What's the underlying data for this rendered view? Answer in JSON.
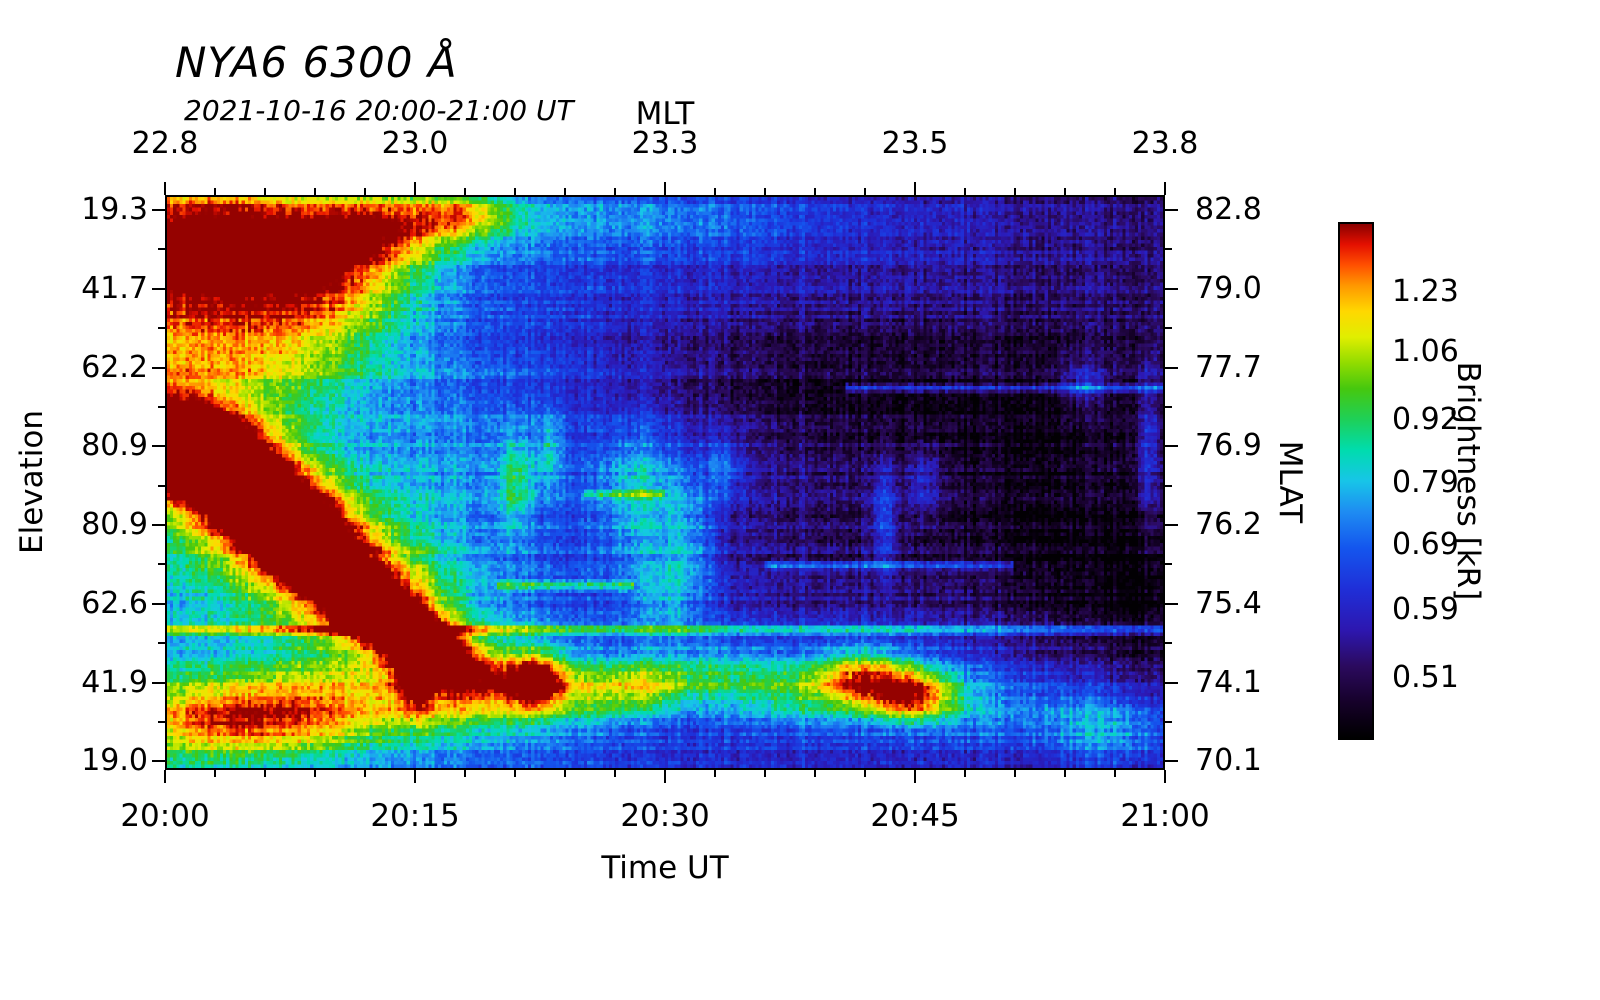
{
  "title": "NYA6 6300 Å",
  "subtitle": "2021-10-16 20:00-21:00 UT",
  "axes": {
    "top": {
      "label": "MLT",
      "ticks": [
        "22.8",
        "23.0",
        "23.3",
        "23.5",
        "23.8"
      ],
      "fracs": [
        0,
        0.25,
        0.5,
        0.75,
        1
      ]
    },
    "bottom": {
      "label": "Time UT",
      "ticks": [
        "20:00",
        "20:15",
        "20:30",
        "20:45",
        "21:00"
      ],
      "fracs": [
        0,
        0.25,
        0.5,
        0.75,
        1
      ]
    },
    "left": {
      "label": "Elevation",
      "ticks": [
        "19.3",
        "41.7",
        "62.2",
        "80.9",
        "80.9",
        "62.6",
        "41.9",
        "19.0"
      ],
      "fracs": [
        0.026,
        0.163,
        0.3,
        0.437,
        0.574,
        0.711,
        0.848,
        0.985
      ]
    },
    "right": {
      "label": "MLAT",
      "ticks": [
        "82.8",
        "79.0",
        "77.7",
        "76.9",
        "76.2",
        "75.4",
        "74.1",
        "70.1"
      ],
      "fracs": [
        0.026,
        0.163,
        0.3,
        0.437,
        0.574,
        0.711,
        0.848,
        0.985
      ]
    }
  },
  "colorbar": {
    "label": "Brightness [kR]",
    "ticks": [
      "1.23",
      "1.06",
      "0.92",
      "0.79",
      "0.69",
      "0.59",
      "0.51"
    ],
    "fracs": [
      0.135,
      0.251,
      0.382,
      0.504,
      0.623,
      0.749,
      0.88
    ]
  },
  "chart_data": {
    "type": "heatmap",
    "title": "NYA6 6300 Å",
    "subtitle": "2021-10-16 20:00-21:00 UT",
    "x_axis_bottom": {
      "label": "Time UT",
      "ticks": [
        "20:00",
        "20:15",
        "20:30",
        "20:45",
        "21:00"
      ]
    },
    "x_axis_top": {
      "label": "MLT",
      "ticks": [
        22.8,
        23.0,
        23.3,
        23.5,
        23.8
      ]
    },
    "y_axis_left": {
      "label": "Elevation",
      "ticks": [
        19.3,
        41.7,
        62.2,
        80.9,
        80.9,
        62.6,
        41.9,
        19.0
      ]
    },
    "y_axis_right": {
      "label": "MLAT",
      "ticks": [
        82.8,
        79.0,
        77.7,
        76.9,
        76.2,
        75.4,
        74.1,
        70.1
      ]
    },
    "value_axis": {
      "label": "Brightness [kR]",
      "ticks": [
        1.23,
        1.06,
        0.92,
        0.79,
        0.69,
        0.59,
        0.51
      ]
    },
    "colormap": [
      [
        0.0,
        "#000000"
      ],
      [
        0.07,
        "#16012a"
      ],
      [
        0.14,
        "#2b0a5e"
      ],
      [
        0.21,
        "#2d17b0"
      ],
      [
        0.29,
        "#1f2fd8"
      ],
      [
        0.37,
        "#1456ee"
      ],
      [
        0.44,
        "#1e8cf2"
      ],
      [
        0.5,
        "#17c5e8"
      ],
      [
        0.56,
        "#00dcae"
      ],
      [
        0.62,
        "#1ed058"
      ],
      [
        0.68,
        "#46c80e"
      ],
      [
        0.73,
        "#92dc00"
      ],
      [
        0.78,
        "#e0ee00"
      ],
      [
        0.83,
        "#ffd800"
      ],
      [
        0.88,
        "#ff9800"
      ],
      [
        0.92,
        "#ff5000"
      ],
      [
        0.96,
        "#e41000"
      ],
      [
        1.0,
        "#8a0000"
      ]
    ],
    "grid": {
      "cols": 320,
      "rows": 160
    },
    "base": {
      "offset": 0.44,
      "slope_x": -0.28
    },
    "noise": {
      "seed": 1337,
      "pixel": 0.11,
      "row": 0.05,
      "col": 0.04
    },
    "features": [
      [
        0.02,
        0.06,
        0.09,
        0.09,
        0,
        0.4
      ],
      [
        0.12,
        0.08,
        0.09,
        0.06,
        0,
        0.38
      ],
      [
        0.22,
        0.05,
        0.05,
        0.045,
        0,
        0.34
      ],
      [
        0.3,
        0.03,
        0.035,
        0.03,
        0,
        0.34
      ],
      [
        0.45,
        0.04,
        0.15,
        0.04,
        0,
        0.14
      ],
      [
        0.04,
        0.2,
        0.1,
        0.09,
        0,
        0.32
      ],
      [
        0.1,
        0.3,
        0.08,
        0.08,
        0,
        0.2
      ],
      [
        0.17,
        0.16,
        0.06,
        0.07,
        0,
        0.24
      ],
      [
        0.3,
        0.45,
        0.06,
        0.12,
        0,
        0.08
      ],
      [
        0.11,
        0.56,
        0.16,
        0.038,
        57,
        0.6
      ],
      [
        0.07,
        0.5,
        0.1,
        0.05,
        57,
        0.4
      ],
      [
        0.12,
        0.58,
        0.2,
        0.075,
        57,
        0.26
      ],
      [
        0.02,
        0.44,
        0.05,
        0.05,
        0,
        0.38
      ],
      [
        0.225,
        0.745,
        0.08,
        0.03,
        52,
        0.42
      ],
      [
        0.27,
        0.8,
        0.05,
        0.025,
        45,
        0.36
      ],
      [
        0.18,
        0.7,
        0.13,
        0.09,
        50,
        0.18
      ],
      [
        0.06,
        0.92,
        0.09,
        0.05,
        0,
        0.42
      ],
      [
        0.16,
        0.89,
        0.1,
        0.05,
        0,
        0.28
      ],
      [
        0.25,
        0.82,
        0.012,
        0.05,
        0,
        0.4
      ],
      [
        0.3,
        0.87,
        0.05,
        0.05,
        0,
        0.24
      ],
      [
        0.37,
        0.845,
        0.022,
        0.035,
        0,
        0.55
      ],
      [
        0.42,
        0.87,
        0.05,
        0.04,
        0,
        0.28
      ],
      [
        0.48,
        0.855,
        0.04,
        0.035,
        0,
        0.3
      ],
      [
        0.56,
        0.84,
        0.05,
        0.04,
        0,
        0.2
      ],
      [
        0.63,
        0.87,
        0.05,
        0.04,
        0,
        0.2
      ],
      [
        0.7,
        0.845,
        0.035,
        0.035,
        0,
        0.45
      ],
      [
        0.75,
        0.875,
        0.03,
        0.03,
        0,
        0.5
      ],
      [
        0.72,
        0.86,
        0.09,
        0.06,
        0,
        0.2
      ],
      [
        0.84,
        0.9,
        0.06,
        0.05,
        0,
        0.16
      ],
      [
        0.95,
        0.93,
        0.05,
        0.05,
        0,
        0.3
      ],
      [
        0.35,
        0.5,
        0.012,
        0.06,
        0,
        0.22
      ],
      [
        0.385,
        0.44,
        0.01,
        0.05,
        0,
        0.18
      ],
      [
        0.47,
        0.52,
        0.025,
        0.09,
        0,
        0.24
      ],
      [
        0.52,
        0.58,
        0.02,
        0.09,
        0,
        0.22
      ],
      [
        0.5,
        0.7,
        0.03,
        0.05,
        0,
        0.16
      ],
      [
        0.56,
        0.47,
        0.012,
        0.04,
        0,
        0.16
      ],
      [
        0.72,
        0.56,
        0.01,
        0.07,
        0,
        0.22
      ],
      [
        0.76,
        0.5,
        0.012,
        0.05,
        0,
        0.16
      ],
      [
        0.985,
        0.45,
        0.008,
        0.1,
        0,
        0.2
      ],
      [
        0.92,
        0.33,
        0.015,
        0.03,
        0,
        0.16
      ],
      [
        0.72,
        0.33,
        0.16,
        0.1,
        0,
        -0.13
      ],
      [
        0.85,
        0.55,
        0.13,
        0.14,
        0,
        -0.14
      ],
      [
        0.62,
        0.6,
        0.1,
        0.1,
        0,
        -0.07
      ],
      [
        0.97,
        0.7,
        0.06,
        0.1,
        0,
        -0.1
      ],
      [
        0.55,
        0.3,
        0.12,
        0.08,
        0,
        -0.06
      ]
    ],
    "lines": [
      [
        0.757,
        0.0,
        1.0,
        0.3,
        0.006
      ],
      [
        0.335,
        0.68,
        1.0,
        0.26,
        0.005
      ],
      [
        0.645,
        0.6,
        0.85,
        0.24,
        0.005
      ],
      [
        0.68,
        0.33,
        0.47,
        0.26,
        0.005
      ],
      [
        0.52,
        0.42,
        0.5,
        0.2,
        0.004
      ]
    ]
  }
}
